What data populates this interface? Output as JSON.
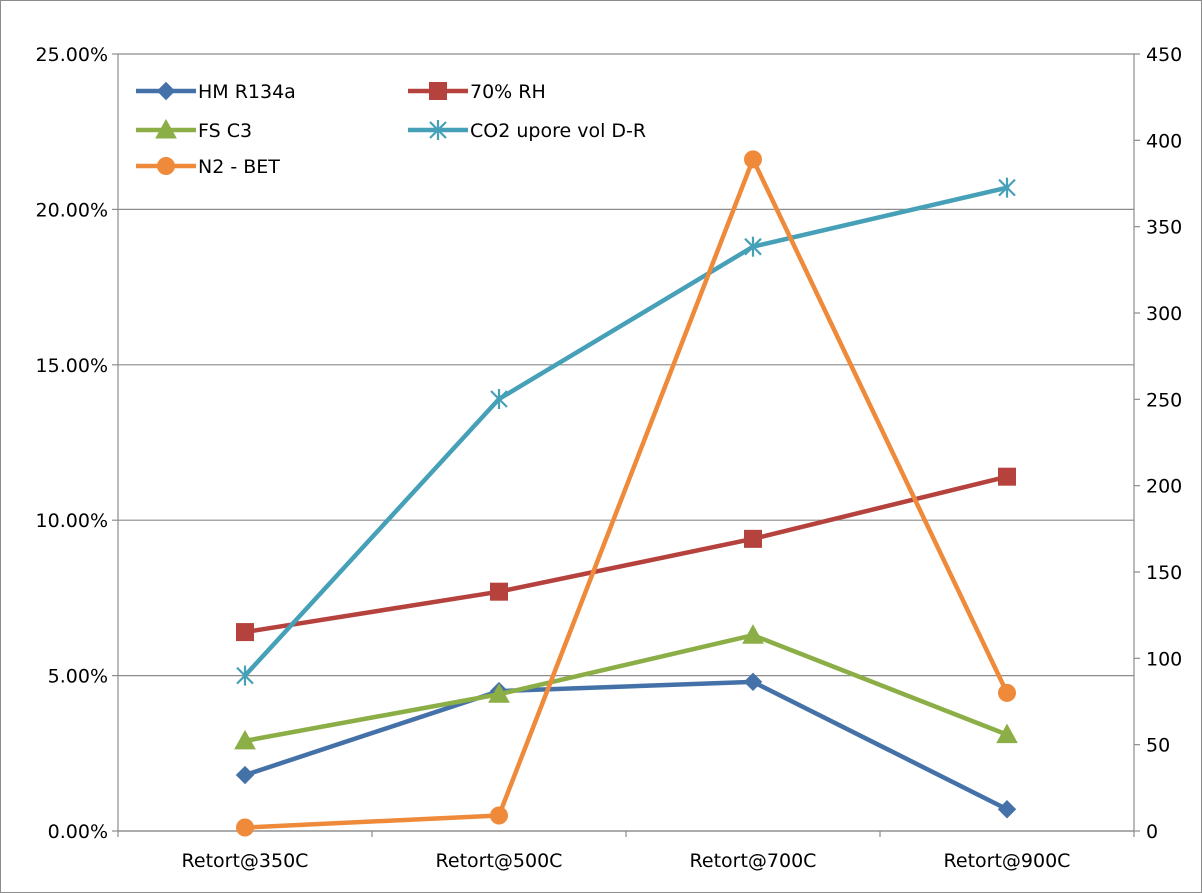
{
  "chart_data": {
    "type": "line",
    "title": "",
    "xlabel": "",
    "ylabel": "",
    "y2label": "",
    "categories": [
      "Retort@350C",
      "Retort@500C",
      "Retort@700C",
      "Retort@900C"
    ],
    "y_axis": {
      "range": [
        0,
        0.25
      ],
      "ticks": [
        0,
        0.05,
        0.1,
        0.15,
        0.2,
        0.25
      ],
      "tick_labels": [
        "0.00%",
        "5.00%",
        "10.00%",
        "15.00%",
        "20.00%",
        "25.00%"
      ]
    },
    "y2_axis": {
      "range": [
        0,
        450
      ],
      "ticks": [
        0,
        50,
        100,
        150,
        200,
        250,
        300,
        350,
        400,
        450
      ],
      "tick_labels": [
        "0",
        "50",
        "100",
        "150",
        "200",
        "250",
        "300",
        "350",
        "400",
        "450"
      ]
    },
    "grid": "horizontal major gridlines",
    "legend_position": "top-left",
    "series": [
      {
        "name": "HM R134a",
        "axis": "left",
        "marker": "diamond",
        "color": "#4472a8",
        "values": [
          0.018,
          0.045,
          0.048,
          0.007
        ]
      },
      {
        "name": "70% RH",
        "axis": "left",
        "marker": "square",
        "color": "#b6423e",
        "values": [
          0.064,
          0.077,
          0.094,
          0.114
        ]
      },
      {
        "name": "FS C3",
        "axis": "left",
        "marker": "triangle",
        "color": "#8cae46",
        "values": [
          0.029,
          0.044,
          0.063,
          0.031
        ]
      },
      {
        "name": "CO2 upore vol D-R",
        "axis": "left",
        "marker": "star",
        "color": "#46a0b8",
        "values": [
          0.05,
          0.139,
          0.188,
          0.207
        ]
      },
      {
        "name": "N2 - BET",
        "axis": "right",
        "marker": "circle",
        "color": "#ee8a3a",
        "values": [
          2,
          9,
          389,
          80
        ]
      }
    ]
  }
}
